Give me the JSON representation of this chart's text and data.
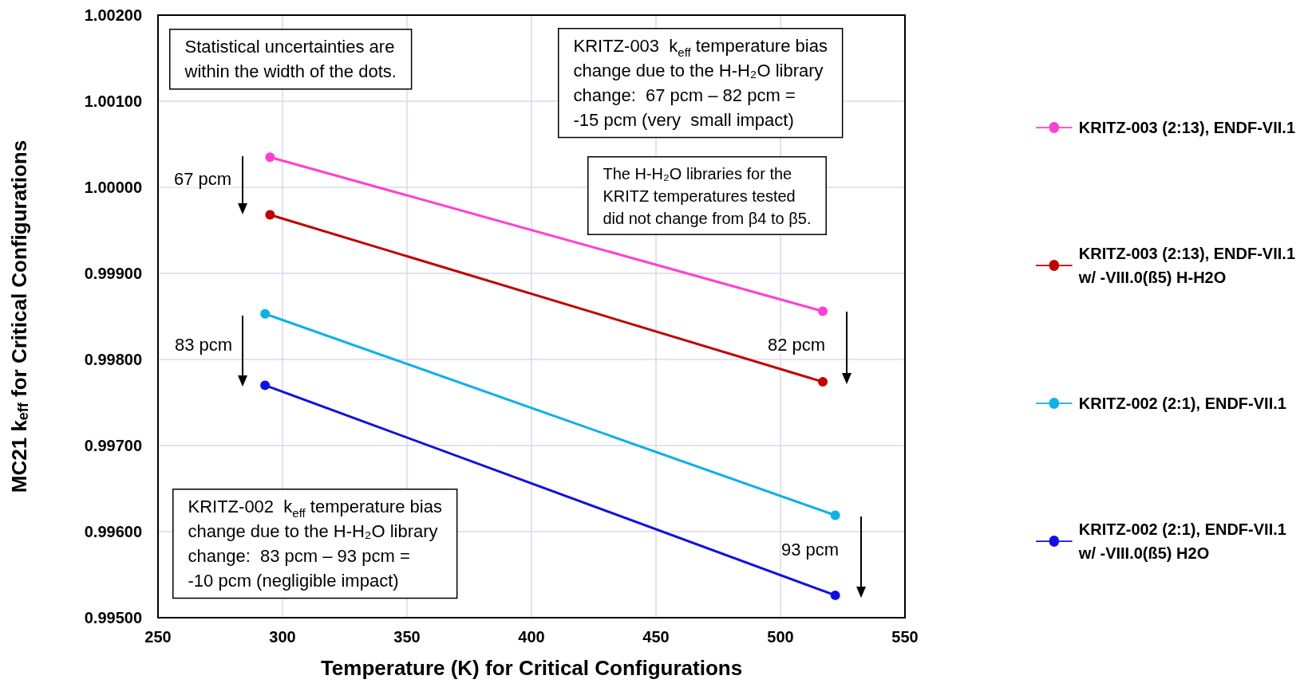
{
  "chart_data": {
    "type": "line",
    "xlabel": "Temperature (K) for Critical Configurations",
    "ylabel": "MC21 k$_{eff}$ for Critical Configurations",
    "xlim": [
      250,
      550
    ],
    "xticks": [
      250,
      300,
      350,
      400,
      450,
      500,
      550
    ],
    "ylim": [
      0.995,
      1.002
    ],
    "yticks": [
      {
        "value": 0.995,
        "label": "0.99500"
      },
      {
        "value": 0.996,
        "label": "0.99600"
      },
      {
        "value": 0.997,
        "label": "0.99700"
      },
      {
        "value": 0.998,
        "label": "0.99800"
      },
      {
        "value": 0.999,
        "label": "0.99900"
      },
      {
        "value": 1,
        "label": "1.00000"
      },
      {
        "value": 1.001,
        "label": "1.00100"
      },
      {
        "value": 1.002,
        "label": "1.00200"
      }
    ],
    "grid": true,
    "legend": "right",
    "marker": "circle",
    "line_style": "solid",
    "series": [
      {
        "name": "KRITZ-003 (2:13), ENDF-VII.1",
        "color": "#ff40d0",
        "x": [
          295,
          517
        ],
        "values": [
          1.00035,
          0.99856
        ]
      },
      {
        "name": "KRITZ-003 (2:13), ENDF-VII.1\nw/ -VIII.0(ß5) H-H2O",
        "color": "#c00000",
        "x": [
          295,
          517
        ],
        "values": [
          0.99968,
          0.99774
        ]
      },
      {
        "name": "KRITZ-002 (2:1), ENDF-VII.1",
        "color": "#10b0e8",
        "x": [
          293,
          522
        ],
        "values": [
          0.99853,
          0.99619
        ]
      },
      {
        "name": "KRITZ-002 (2:1), ENDF-VII.1\nw/ -VIII.0(ß5) H2O",
        "color": "#1010e0",
        "x": [
          293,
          522
        ],
        "values": [
          0.9977,
          0.99526
        ]
      }
    ],
    "annotations": [
      "Statistical uncertainties are\nwithin the width of the dots.",
      "KRITZ-003  k$_{eff}$ temperature bias\nchange due to the H-H₂O library\nchange:  67 pcm – 82 pcm =\n-15 pcm (very  small impact)",
      "The H-H₂O libraries for the\nKRITZ temperatures tested\ndid not change from β4 to β5.",
      "KRITZ-002  k$_{eff}$ temperature bias\nchange due to the H-H₂O library\nchange:  83 pcm – 93 pcm =\n-10 pcm (negligible impact)",
      "67 pcm",
      "83 pcm",
      "82 pcm",
      "93 pcm"
    ]
  }
}
